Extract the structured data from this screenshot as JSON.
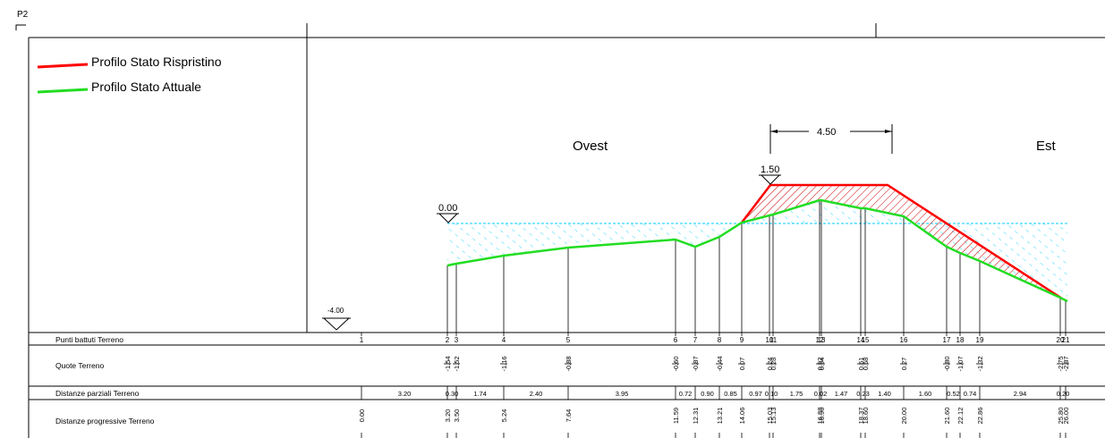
{
  "sheet": {
    "label": "P2"
  },
  "legend": [
    {
      "name": "Profilo Stato Rispristino",
      "color": "#ff0000"
    },
    {
      "name": "Profilo Stato Attuale",
      "color": "#00e000"
    }
  ],
  "section": {
    "west_label": "Ovest",
    "east_label": "Est",
    "water_level": "0.00",
    "crest_level": "1.50",
    "datum_level": "-4.00",
    "crest_width": "4.50"
  },
  "colors": {
    "water": "#00ccff",
    "restoration": "#ff0000",
    "current": "#22dd22",
    "hatch": "#cc0000"
  },
  "table": {
    "row_labels": [
      "Punti battuti Terreno",
      "Quote Terreno",
      "Distanze parziali Terreno",
      "Distanze progressive Terreno"
    ],
    "points": [
      {
        "id": "1",
        "quota": "",
        "progressiva": "0.00"
      },
      {
        "id": "2",
        "quota": "-1.54",
        "progressiva": "3.20"
      },
      {
        "id": "3",
        "quota": "-1.52",
        "progressiva": "3.50"
      },
      {
        "id": "4",
        "quota": "-1.16",
        "progressiva": "5.24"
      },
      {
        "id": "5",
        "quota": "-0.88",
        "progressiva": "7.64"
      },
      {
        "id": "6",
        "quota": "-0.60",
        "progressiva": "11.59"
      },
      {
        "id": "7",
        "quota": "-0.87",
        "progressiva": "12.31"
      },
      {
        "id": "8",
        "quota": "-0.44",
        "progressiva": "13.21"
      },
      {
        "id": "9",
        "quota": "0.07",
        "progressiva": "14.06"
      },
      {
        "id": "10",
        "quota": "0.24",
        "progressiva": "15.03"
      },
      {
        "id": "11",
        "quota": "0.28",
        "progressiva": "15.13"
      },
      {
        "id": "12",
        "quota": "0.92",
        "progressiva": "16.88"
      },
      {
        "id": "13",
        "quota": "0.94",
        "progressiva": "16.90"
      },
      {
        "id": "14",
        "quota": "0.61",
        "progressiva": "18.37"
      },
      {
        "id": "15",
        "quota": "0.58",
        "progressiva": "18.60"
      },
      {
        "id": "16",
        "quota": "0.27",
        "progressiva": "20.00"
      },
      {
        "id": "17",
        "quota": "-0.80",
        "progressiva": "21.60"
      },
      {
        "id": "18",
        "quota": "-1.07",
        "progressiva": "22.12"
      },
      {
        "id": "19",
        "quota": "-1.32",
        "progressiva": "22.86"
      },
      {
        "id": "20",
        "quota": "-2.75",
        "progressiva": "25.80"
      },
      {
        "id": "21",
        "quota": "-2.87",
        "progressiva": "26.00"
      }
    ],
    "partial_distances": [
      {
        "after": 0,
        "value": "3.20"
      },
      {
        "after": 1,
        "value": "0.30"
      },
      {
        "after": 2,
        "value": "1.74"
      },
      {
        "after": 3,
        "value": "2.40"
      },
      {
        "after": 4,
        "value": "3.95"
      },
      {
        "after": 5,
        "value": "0.72"
      },
      {
        "after": 6,
        "value": "0.90"
      },
      {
        "after": 7,
        "value": "0.85"
      },
      {
        "after": 8,
        "value": "0.97"
      },
      {
        "after": 9,
        "value": "0.10"
      },
      {
        "after": 10,
        "value": "1.75"
      },
      {
        "after": 11,
        "value": "0.02"
      },
      {
        "after": 12,
        "value": "1.47"
      },
      {
        "after": 13,
        "value": "0.23"
      },
      {
        "after": 14,
        "value": "1.40"
      },
      {
        "after": 15,
        "value": "1.60"
      },
      {
        "after": 16,
        "value": "0.52"
      },
      {
        "after": 17,
        "value": "0.74"
      },
      {
        "after": 18,
        "value": "2.94"
      },
      {
        "after": 19,
        "value": "0.20"
      }
    ]
  }
}
